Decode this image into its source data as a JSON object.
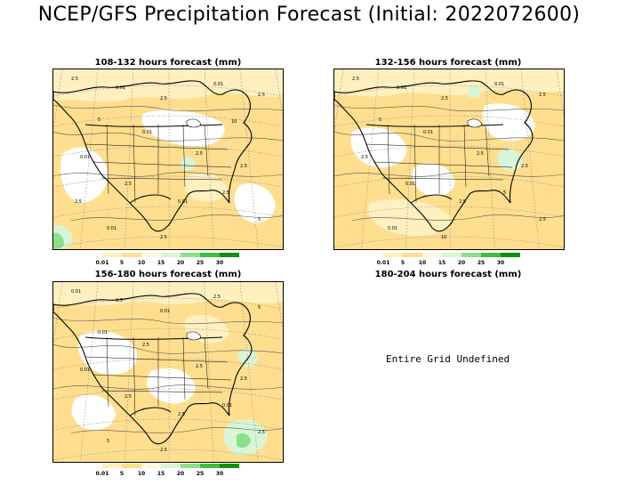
{
  "title": "NCEP/GFS Precipitation Forecast (Initial: 2022072600)",
  "panels": [
    {
      "title": "108-132 hours forecast (mm)",
      "defined": true,
      "labels": [
        "2.5",
        "0.01",
        "2.5",
        "0.01",
        "2.5",
        "5",
        "0.01",
        "2.5",
        "2.5",
        "0.01",
        "2.5",
        "0.01",
        "2.5",
        "5",
        "0.01",
        "2.5",
        "2.5",
        "10"
      ]
    },
    {
      "title": "132-156 hours forecast (mm)",
      "defined": true,
      "labels": [
        "2.5",
        "0.01",
        "2.5",
        "0.01",
        "2.5",
        "5",
        "0.01",
        "2.5",
        "2.5",
        "2.5",
        "0.01",
        "2.5",
        "5",
        "2.5",
        "0.01",
        "10"
      ]
    },
    {
      "title": "156-180 hours forecast (mm)",
      "defined": true,
      "labels": [
        "0.01",
        "2.5",
        "0.01",
        "2.5",
        "5",
        "0.01",
        "2.5",
        "2.5",
        "2.5",
        "0.01",
        "2.5",
        "2.5",
        "0.01",
        "2.5",
        "5",
        "2.5"
      ]
    },
    {
      "title": "180-204 hours forecast (mm)",
      "defined": false,
      "message": "Entire Grid Undefined"
    }
  ],
  "colorbar": {
    "labels": [
      "0.01",
      "5",
      "10",
      "15",
      "20",
      "25",
      "30"
    ],
    "colors": [
      "#ffffff",
      "#fff0c0",
      "#ffdf8f",
      "#fff9e0",
      "#d8f5d5",
      "#8ce08a",
      "#3fbf3f",
      "#108f10"
    ]
  }
}
